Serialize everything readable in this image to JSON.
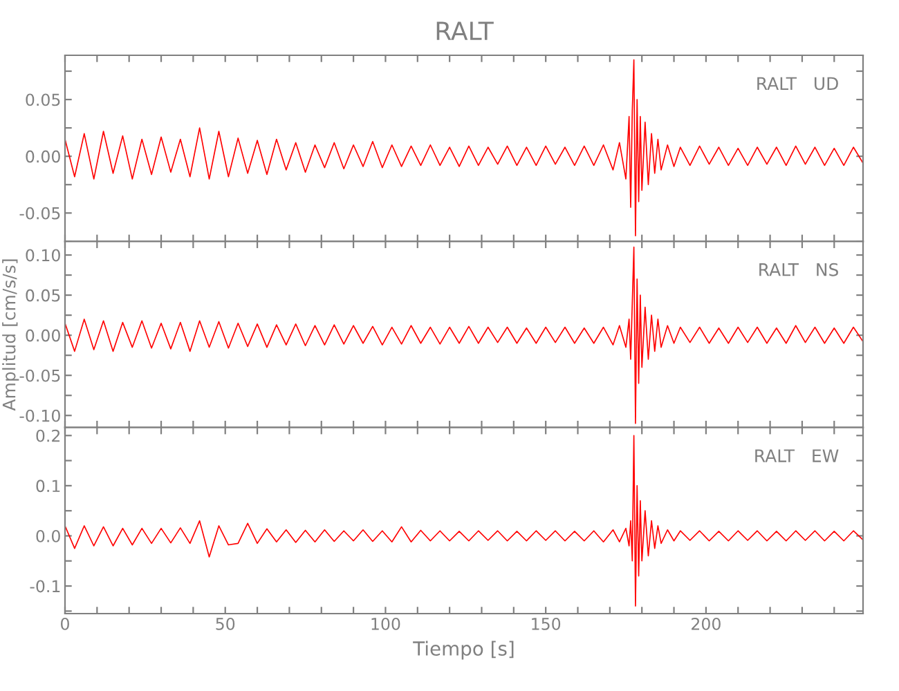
{
  "chart_data": [
    {
      "type": "line",
      "title": "RALT",
      "annotations": [
        "RALT   UD"
      ],
      "tick_labels": "y",
      "xlim": [
        0,
        249
      ],
      "xticks": [
        0,
        {
          "value": 10,
          "label": null
        },
        {
          "value": 20,
          "label": null
        },
        {
          "value": 30,
          "label": null
        },
        {
          "value": 40,
          "label": null
        },
        50,
        {
          "value": 60,
          "label": null
        },
        {
          "value": 70,
          "label": null
        },
        {
          "value": 80,
          "label": null
        },
        {
          "value": 90,
          "label": null
        },
        100,
        {
          "value": 110,
          "label": null
        },
        {
          "value": 120,
          "label": null
        },
        {
          "value": 130,
          "label": null
        },
        {
          "value": 140,
          "label": null
        },
        150,
        {
          "value": 160,
          "label": null
        },
        {
          "value": 170,
          "label": null
        },
        {
          "value": 180,
          "label": null
        },
        {
          "value": 190,
          "label": null
        },
        200,
        {
          "value": 210,
          "label": null
        },
        {
          "value": 220,
          "label": null
        },
        {
          "value": 230,
          "label": null
        },
        {
          "value": 240,
          "label": null
        }
      ],
      "ylim": [
        -0.075,
        0.089
      ],
      "yticks": [
        {
          "value": -0.075,
          "label": null
        },
        {
          "value": -0.05,
          "label": "-0.05"
        },
        {
          "value": -0.025,
          "label": null
        },
        {
          "value": 0,
          "label": "0.00"
        },
        {
          "value": 0.025,
          "label": null
        },
        {
          "value": 0.05,
          "label": "0.05"
        },
        {
          "value": 0.075,
          "label": null
        }
      ],
      "x": [
        0,
        3,
        6,
        9,
        12,
        15,
        18,
        21,
        24,
        27,
        30,
        33,
        36,
        39,
        42,
        45,
        48,
        51,
        54,
        57,
        60,
        63,
        66,
        69,
        72,
        75,
        78,
        81,
        84,
        87,
        90,
        93,
        96,
        99,
        102,
        105,
        108,
        111,
        114,
        117,
        120,
        123,
        126,
        129,
        132,
        135,
        138,
        141,
        144,
        147,
        150,
        153,
        156,
        159,
        162,
        165,
        168,
        171,
        173,
        175,
        176,
        176.5,
        177,
        177.5,
        178,
        178.5,
        179,
        179.5,
        180,
        181,
        182,
        183,
        184,
        185,
        186,
        188,
        190,
        192,
        195,
        198,
        201,
        204,
        207,
        210,
        213,
        216,
        219,
        222,
        225,
        228,
        231,
        234,
        237,
        240,
        243,
        246,
        249
      ],
      "series": [
        {
          "color": "#ff0000",
          "values": [
            0.015,
            -0.018,
            0.02,
            -0.02,
            0.022,
            -0.015,
            0.018,
            -0.02,
            0.015,
            -0.016,
            0.017,
            -0.014,
            0.015,
            -0.018,
            0.025,
            -0.02,
            0.022,
            -0.018,
            0.016,
            -0.015,
            0.014,
            -0.016,
            0.015,
            -0.012,
            0.012,
            -0.014,
            0.01,
            -0.01,
            0.012,
            -0.011,
            0.01,
            -0.009,
            0.013,
            -0.01,
            0.01,
            -0.009,
            0.009,
            -0.008,
            0.01,
            -0.008,
            0.008,
            -0.009,
            0.009,
            -0.008,
            0.008,
            -0.007,
            0.009,
            -0.008,
            0.008,
            -0.008,
            0.009,
            -0.007,
            0.008,
            -0.008,
            0.009,
            -0.008,
            0.01,
            -0.012,
            0.012,
            -0.02,
            0.035,
            -0.045,
            0.04,
            0.085,
            -0.07,
            0.05,
            -0.04,
            0.035,
            -0.03,
            0.03,
            -0.025,
            0.02,
            -0.015,
            0.015,
            -0.012,
            0.01,
            -0.009,
            0.008,
            -0.008,
            0.009,
            -0.007,
            0.008,
            -0.008,
            0.007,
            -0.008,
            0.008,
            -0.007,
            0.008,
            -0.008,
            0.009,
            -0.007,
            0.008,
            -0.008,
            0.007,
            -0.008,
            0.008,
            -0.006
          ]
        }
      ]
    },
    {
      "type": "line",
      "ylabel": "Amplitud [cm/s/s]",
      "annotations": [
        "RALT   NS"
      ],
      "tick_labels": "y",
      "xlim": [
        0,
        249
      ],
      "xticks": [
        0,
        {
          "value": 10,
          "label": null
        },
        {
          "value": 20,
          "label": null
        },
        {
          "value": 30,
          "label": null
        },
        {
          "value": 40,
          "label": null
        },
        50,
        {
          "value": 60,
          "label": null
        },
        {
          "value": 70,
          "label": null
        },
        {
          "value": 80,
          "label": null
        },
        {
          "value": 90,
          "label": null
        },
        100,
        {
          "value": 110,
          "label": null
        },
        {
          "value": 120,
          "label": null
        },
        {
          "value": 130,
          "label": null
        },
        {
          "value": 140,
          "label": null
        },
        150,
        {
          "value": 160,
          "label": null
        },
        {
          "value": 170,
          "label": null
        },
        {
          "value": 180,
          "label": null
        },
        {
          "value": 190,
          "label": null
        },
        200,
        {
          "value": 210,
          "label": null
        },
        {
          "value": 220,
          "label": null
        },
        {
          "value": 230,
          "label": null
        },
        {
          "value": 240,
          "label": null
        }
      ],
      "ylim": [
        -0.115,
        0.117
      ],
      "yticks": [
        {
          "value": -0.1,
          "label": "-0.10"
        },
        {
          "value": -0.075,
          "label": null
        },
        {
          "value": -0.05,
          "label": "-0.05"
        },
        {
          "value": -0.025,
          "label": null
        },
        {
          "value": 0,
          "label": "0.00"
        },
        {
          "value": 0.025,
          "label": null
        },
        {
          "value": 0.05,
          "label": "0.05"
        },
        {
          "value": 0.075,
          "label": null
        },
        {
          "value": 0.1,
          "label": "0.10"
        }
      ],
      "x": [
        0,
        3,
        6,
        9,
        12,
        15,
        18,
        21,
        24,
        27,
        30,
        33,
        36,
        39,
        42,
        45,
        48,
        51,
        54,
        57,
        60,
        63,
        66,
        69,
        72,
        75,
        78,
        81,
        84,
        87,
        90,
        93,
        96,
        99,
        102,
        105,
        108,
        111,
        114,
        117,
        120,
        123,
        126,
        129,
        132,
        135,
        138,
        141,
        144,
        147,
        150,
        153,
        156,
        159,
        162,
        165,
        168,
        171,
        173,
        175,
        176,
        176.5,
        177,
        177.5,
        178,
        178.5,
        179,
        179.5,
        180,
        181,
        182,
        183,
        184,
        185,
        186,
        188,
        190,
        192,
        195,
        198,
        201,
        204,
        207,
        210,
        213,
        216,
        219,
        222,
        225,
        228,
        231,
        234,
        237,
        240,
        243,
        246,
        249
      ],
      "series": [
        {
          "color": "#ff0000",
          "values": [
            0.015,
            -0.02,
            0.02,
            -0.018,
            0.018,
            -0.02,
            0.016,
            -0.015,
            0.018,
            -0.016,
            0.015,
            -0.017,
            0.016,
            -0.02,
            0.018,
            -0.015,
            0.017,
            -0.016,
            0.015,
            -0.014,
            0.014,
            -0.015,
            0.013,
            -0.012,
            0.014,
            -0.013,
            0.012,
            -0.012,
            0.013,
            -0.011,
            0.012,
            -0.01,
            0.011,
            -0.012,
            0.01,
            -0.011,
            0.012,
            -0.01,
            0.01,
            -0.011,
            0.01,
            -0.01,
            0.011,
            -0.01,
            0.01,
            -0.009,
            0.01,
            -0.01,
            0.009,
            -0.01,
            0.01,
            -0.009,
            0.01,
            -0.01,
            0.009,
            -0.01,
            0.01,
            -0.012,
            0.012,
            -0.015,
            0.02,
            -0.03,
            0.04,
            0.11,
            -0.11,
            0.07,
            -0.06,
            0.05,
            -0.04,
            0.035,
            -0.03,
            0.025,
            -0.02,
            0.02,
            -0.015,
            0.012,
            -0.01,
            0.01,
            -0.009,
            0.01,
            -0.01,
            0.009,
            -0.01,
            0.01,
            -0.009,
            0.01,
            -0.01,
            0.009,
            -0.01,
            0.012,
            -0.009,
            0.01,
            -0.01,
            0.009,
            -0.01,
            0.01,
            -0.008
          ]
        }
      ]
    },
    {
      "type": "line",
      "xlabel": "Tiempo [s]",
      "annotations": [
        "RALT   EW"
      ],
      "xlim": [
        0,
        249
      ],
      "xticks": [
        0,
        {
          "value": 10,
          "label": null
        },
        {
          "value": 20,
          "label": null
        },
        {
          "value": 30,
          "label": null
        },
        {
          "value": 40,
          "label": null
        },
        50,
        {
          "value": 60,
          "label": null
        },
        {
          "value": 70,
          "label": null
        },
        {
          "value": 80,
          "label": null
        },
        {
          "value": 90,
          "label": null
        },
        100,
        {
          "value": 110,
          "label": null
        },
        {
          "value": 120,
          "label": null
        },
        {
          "value": 130,
          "label": null
        },
        {
          "value": 140,
          "label": null
        },
        150,
        {
          "value": 160,
          "label": null
        },
        {
          "value": 170,
          "label": null
        },
        {
          "value": 180,
          "label": null
        },
        {
          "value": 190,
          "label": null
        },
        200,
        {
          "value": 210,
          "label": null
        },
        {
          "value": 220,
          "label": null
        },
        {
          "value": 230,
          "label": null
        },
        {
          "value": 240,
          "label": null
        }
      ],
      "ylim": [
        -0.155,
        0.216
      ],
      "yticks": [
        {
          "value": -0.15,
          "label": null
        },
        {
          "value": -0.1,
          "label": "-0.1"
        },
        {
          "value": -0.05,
          "label": null
        },
        {
          "value": 0,
          "label": "0.0"
        },
        {
          "value": 0.05,
          "label": null
        },
        0.1,
        {
          "value": 0.15,
          "label": null
        },
        0.2
      ],
      "x": [
        0,
        3,
        6,
        9,
        12,
        15,
        18,
        21,
        24,
        27,
        30,
        33,
        36,
        39,
        42,
        45,
        48,
        51,
        54,
        57,
        60,
        63,
        66,
        69,
        72,
        75,
        78,
        81,
        84,
        87,
        90,
        93,
        96,
        99,
        102,
        105,
        108,
        111,
        114,
        117,
        120,
        123,
        126,
        129,
        132,
        135,
        138,
        141,
        144,
        147,
        150,
        153,
        156,
        159,
        162,
        165,
        168,
        171,
        173,
        175,
        176,
        176.5,
        177,
        177.5,
        178,
        178.5,
        179,
        179.5,
        180,
        181,
        182,
        183,
        184,
        185,
        186,
        188,
        190,
        192,
        195,
        198,
        201,
        204,
        207,
        210,
        213,
        216,
        219,
        222,
        225,
        228,
        231,
        234,
        237,
        240,
        243,
        246,
        249
      ],
      "series": [
        {
          "color": "#ff0000",
          "values": [
            0.02,
            -0.025,
            0.02,
            -0.02,
            0.018,
            -0.02,
            0.015,
            -0.018,
            0.015,
            -0.015,
            0.015,
            -0.014,
            0.016,
            -0.015,
            0.03,
            -0.042,
            0.02,
            -0.018,
            -0.015,
            0.025,
            -0.015,
            0.014,
            -0.012,
            0.012,
            -0.013,
            0.011,
            -0.012,
            0.012,
            -0.011,
            0.01,
            -0.01,
            0.012,
            -0.011,
            0.01,
            -0.012,
            0.018,
            -0.012,
            0.011,
            -0.01,
            0.01,
            -0.01,
            0.009,
            -0.01,
            0.01,
            -0.009,
            0.01,
            -0.01,
            0.009,
            -0.01,
            0.01,
            -0.009,
            0.01,
            -0.01,
            0.009,
            -0.01,
            0.01,
            -0.012,
            0.012,
            -0.012,
            0.015,
            -0.02,
            0.03,
            -0.05,
            0.2,
            -0.14,
            0.1,
            -0.08,
            0.07,
            -0.05,
            0.05,
            -0.04,
            0.03,
            -0.025,
            0.02,
            -0.015,
            0.012,
            -0.01,
            0.01,
            -0.009,
            0.01,
            -0.01,
            0.009,
            -0.01,
            0.01,
            -0.009,
            0.01,
            -0.01,
            0.009,
            -0.01,
            0.01,
            -0.009,
            0.01,
            -0.01,
            0.009,
            -0.01,
            0.01,
            -0.008
          ]
        }
      ]
    }
  ]
}
